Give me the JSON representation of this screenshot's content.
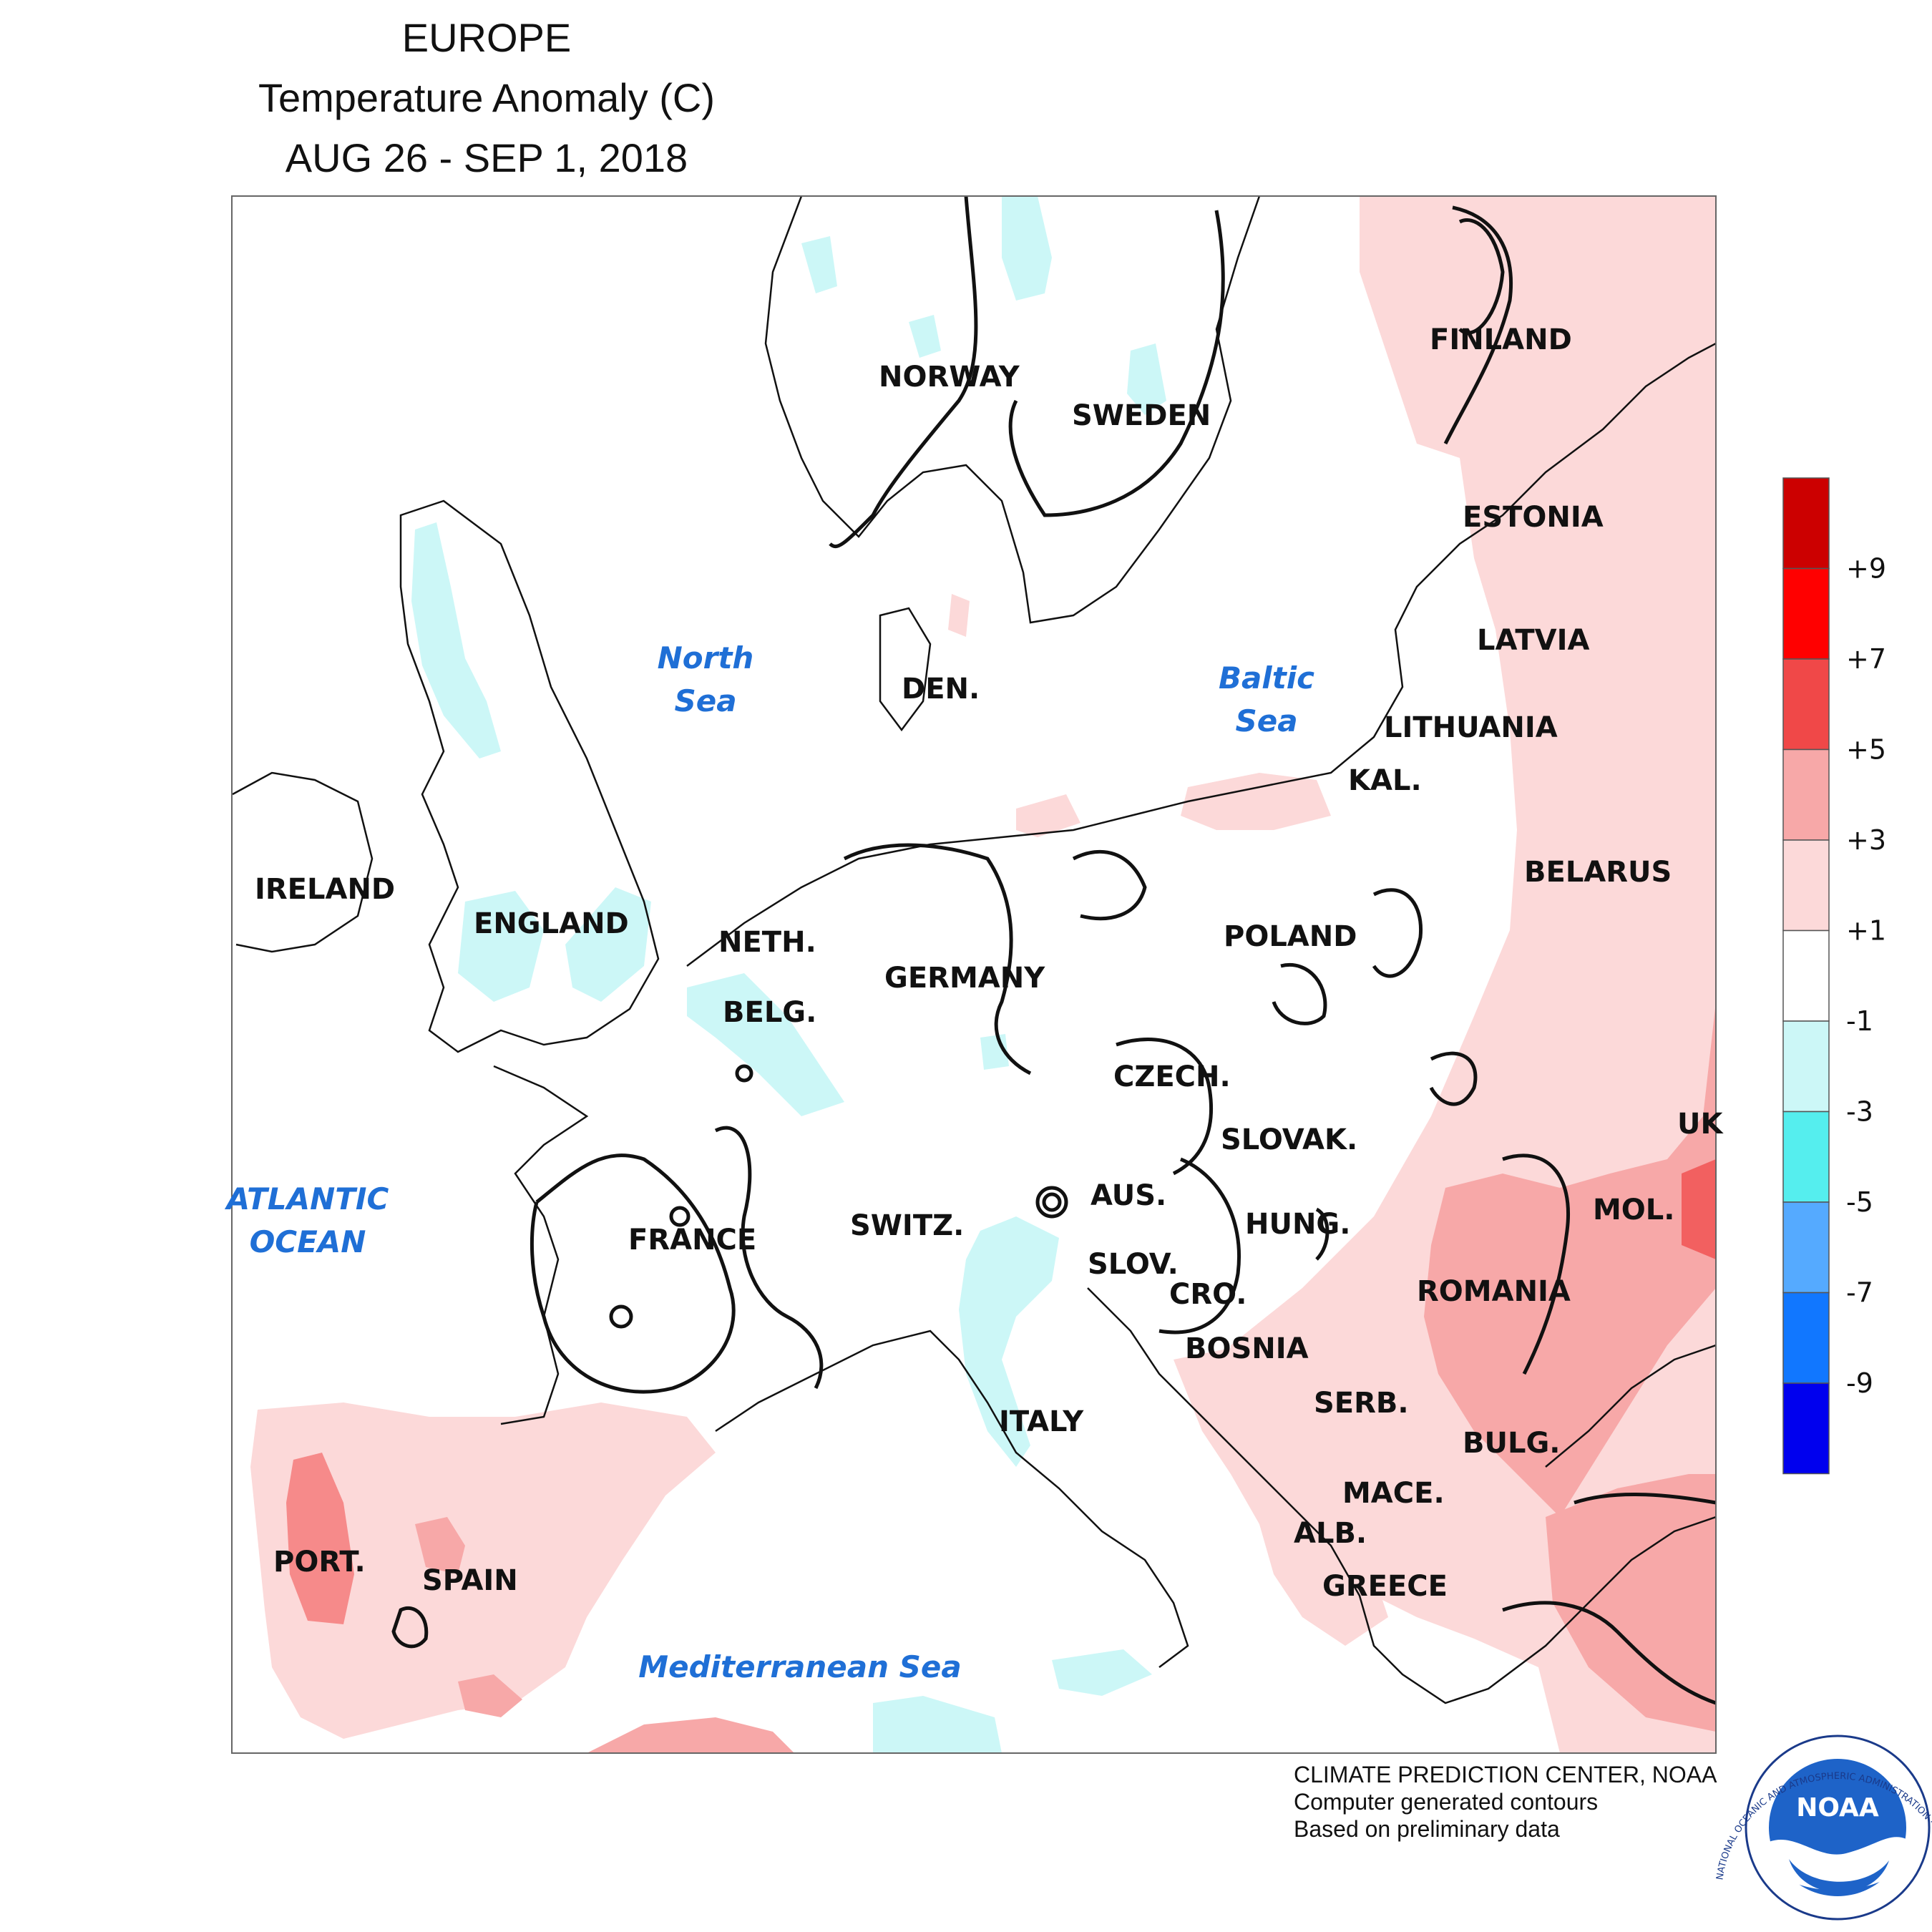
{
  "title": {
    "line1": "EUROPE",
    "line2": "Temperature Anomaly (C)",
    "line3": "AUG 26 - SEP 1, 2018"
  },
  "countries": {
    "norway": "NORWAY",
    "sweden": "SWEDEN",
    "finland": "FINLAND",
    "estonia": "ESTONIA",
    "latvia": "LATVIA",
    "lithuania": "LITHUANIA",
    "kal": "KAL.",
    "belarus": "BELARUS",
    "poland": "POLAND",
    "ireland": "IRELAND",
    "england": "ENGLAND",
    "den": "DEN.",
    "neth": "NETH.",
    "belg": "BELG.",
    "germany": "GERMANY",
    "czech": "CZECH.",
    "slovak": "SLOVAK.",
    "aus": "AUS.",
    "hung": "HUNG.",
    "france": "FRANCE",
    "switz": "SWITZ.",
    "slov": "SLOV.",
    "cro": "CRO.",
    "bosnia": "BOSNIA",
    "serb": "SERB.",
    "romania": "ROMANIA",
    "mol": "MOL.",
    "uk": "UK",
    "bulg": "BULG.",
    "italy": "ITALY",
    "mace": "MACE.",
    "alb": "ALB.",
    "greece": "GREECE",
    "port": "PORT.",
    "spain": "SPAIN"
  },
  "seas": {
    "north1": "North",
    "north2": "Sea",
    "baltic1": "Baltic",
    "baltic2": "Sea",
    "atlantic1": "ATLANTIC",
    "atlantic2": "OCEAN",
    "med": "Mediterranean Sea"
  },
  "legend": {
    "ticks": [
      "+9",
      "+7",
      "+5",
      "+3",
      "+1",
      "-1",
      "-3",
      "-5",
      "-7",
      "-9"
    ],
    "colors": [
      "#cc0000",
      "#ff0000",
      "#f04848",
      "#f7a8a8",
      "#fcd9d9",
      "#ffffff",
      "#ccf7f7",
      "#55eeee",
      "#55aaff",
      "#1177ff",
      "#0000ee"
    ]
  },
  "credits": {
    "line1": "CLIMATE PREDICTION CENTER, NOAA",
    "line2": "Computer generated contours",
    "line3": "Based on preliminary data"
  },
  "logo": {
    "text": "NOAA",
    "ring_text": "NATIONAL OCEANIC AND ATMOSPHERIC ADMINISTRATION · U.S. DEPARTMENT OF COMMERCE"
  }
}
